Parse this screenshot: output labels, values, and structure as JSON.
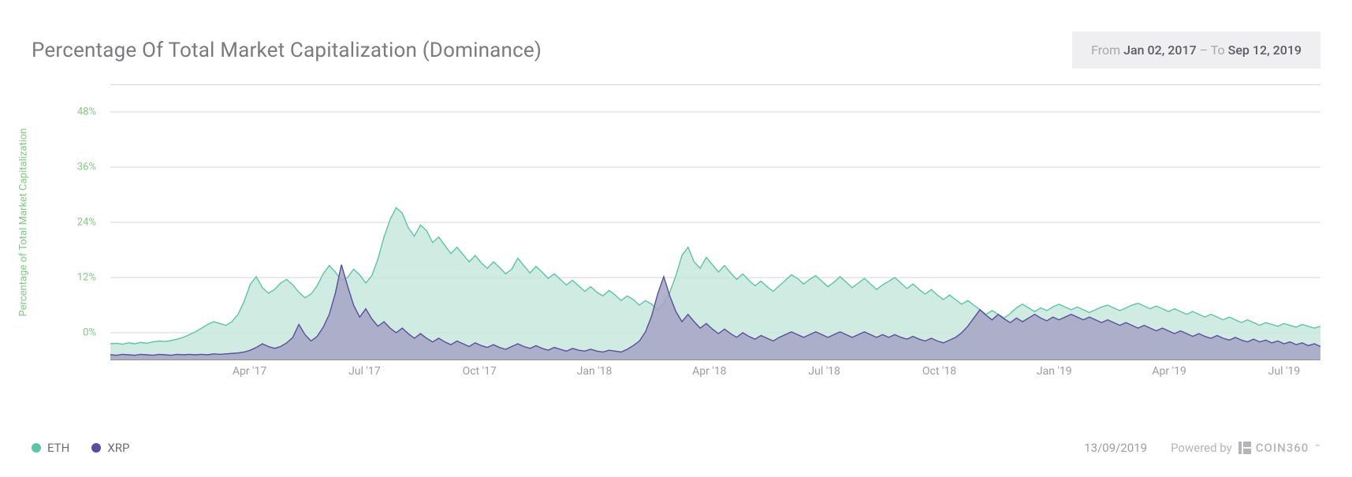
{
  "chart": {
    "type": "area",
    "title": "Percentage Of Total Market Capitalization (Dominance)",
    "title_color": "#7a7a82",
    "title_fontsize": 26,
    "background_color": "#ffffff",
    "grid_color": "#d7d7dc",
    "axis_line_color": "#8f8f96",
    "y_axis": {
      "label": "Percentage of Total Market Capitalization",
      "label_color": "#7fc97f",
      "label_fontsize": 13,
      "tick_color": "#7fc97f",
      "tick_fontsize": 13,
      "ticks": [
        0,
        12,
        24,
        36,
        48
      ],
      "suffix": "%",
      "ylim": [
        -6,
        54
      ]
    },
    "x_axis": {
      "tick_color": "#9b9ba2",
      "tick_fontsize": 14,
      "labels": [
        "Apr '17",
        "Jul '17",
        "Oct '17",
        "Jan '18",
        "Apr '18",
        "Jul '18",
        "Oct '18",
        "Jan '19",
        "Apr '19",
        "Jul '19"
      ],
      "label_positions_pct": [
        11.5,
        21,
        30.5,
        40,
        49.5,
        59,
        68.5,
        78,
        87.5,
        97
      ]
    },
    "date_range": {
      "from_label": "From",
      "from_value": "Jan 02, 2017",
      "sep": "–",
      "to_label": "To",
      "to_value": "Sep 12, 2019",
      "bg_color": "#efeff1",
      "label_color": "#a7a7ad",
      "value_color": "#5b5b63"
    },
    "series": [
      {
        "name": "ETH",
        "stroke": "#5cc4a6",
        "fill": "#c8e8dd",
        "fill_opacity": 0.85,
        "stroke_width": 1.4,
        "data": [
          -2.4,
          -2.3,
          -2.5,
          -2.2,
          -2.4,
          -2.1,
          -2.3,
          -2.0,
          -1.8,
          -1.9,
          -1.7,
          -1.4,
          -1.0,
          -0.4,
          0.2,
          1.0,
          1.8,
          2.4,
          2.0,
          1.6,
          2.4,
          4.0,
          6.8,
          10.5,
          12.2,
          9.8,
          8.6,
          9.4,
          10.8,
          11.6,
          10.4,
          8.8,
          7.6,
          8.4,
          10.2,
          12.8,
          14.6,
          13.2,
          11.4,
          12.0,
          13.8,
          12.6,
          10.8,
          12.4,
          16.0,
          20.8,
          24.6,
          27.2,
          26.0,
          22.8,
          21.0,
          23.4,
          22.2,
          19.6,
          20.8,
          19.0,
          17.2,
          18.6,
          17.0,
          15.4,
          16.8,
          15.2,
          14.0,
          15.4,
          14.2,
          12.8,
          13.8,
          16.2,
          14.6,
          13.0,
          14.4,
          13.2,
          11.8,
          12.8,
          11.6,
          10.4,
          11.4,
          10.2,
          9.0,
          10.0,
          8.8,
          8.0,
          9.2,
          8.2,
          7.0,
          8.0,
          7.2,
          6.0,
          7.0,
          6.2,
          5.0,
          6.4,
          8.8,
          12.4,
          16.8,
          18.6,
          15.4,
          14.0,
          16.4,
          14.8,
          13.2,
          14.6,
          13.0,
          11.6,
          12.8,
          11.4,
          10.2,
          11.2,
          10.0,
          9.0,
          10.2,
          11.4,
          12.6,
          11.8,
          10.6,
          11.6,
          12.4,
          11.2,
          10.0,
          11.0,
          12.2,
          11.0,
          9.8,
          10.8,
          11.8,
          10.6,
          9.4,
          10.4,
          11.2,
          12.0,
          10.8,
          9.6,
          10.6,
          9.4,
          8.4,
          9.4,
          8.2,
          7.2,
          8.2,
          7.2,
          6.2,
          7.0,
          6.0,
          5.0,
          4.0,
          4.8,
          4.0,
          3.2,
          4.2,
          5.4,
          6.2,
          5.4,
          4.6,
          5.4,
          4.8,
          5.6,
          6.2,
          5.6,
          5.0,
          5.6,
          5.0,
          4.4,
          5.0,
          5.6,
          6.0,
          5.4,
          4.8,
          5.4,
          6.0,
          6.4,
          5.8,
          5.2,
          5.8,
          5.2,
          4.6,
          5.2,
          4.6,
          4.0,
          4.6,
          4.0,
          3.4,
          4.0,
          3.4,
          2.8,
          3.4,
          2.8,
          2.2,
          2.8,
          2.2,
          1.6,
          2.2,
          1.8,
          1.4,
          2.0,
          1.6,
          1.2,
          1.8,
          1.4,
          1.0,
          1.4
        ]
      },
      {
        "name": "XRP",
        "stroke": "#5a4d9a",
        "fill": "#a6a4c4",
        "fill_opacity": 0.85,
        "stroke_width": 1.4,
        "data": [
          -4.8,
          -4.9,
          -4.7,
          -4.8,
          -4.9,
          -4.7,
          -4.8,
          -4.9,
          -4.7,
          -4.8,
          -4.9,
          -4.7,
          -4.8,
          -4.7,
          -4.8,
          -4.7,
          -4.8,
          -4.6,
          -4.7,
          -4.6,
          -4.5,
          -4.4,
          -4.2,
          -3.8,
          -3.2,
          -2.4,
          -3.0,
          -3.4,
          -3.0,
          -2.2,
          -1.0,
          1.8,
          -0.4,
          -1.8,
          -0.8,
          1.2,
          4.0,
          8.6,
          14.8,
          10.2,
          6.0,
          3.4,
          5.2,
          3.0,
          1.4,
          2.4,
          1.0,
          0.0,
          1.0,
          -0.2,
          -1.2,
          -0.2,
          -1.2,
          -2.0,
          -1.2,
          -2.0,
          -2.6,
          -1.8,
          -2.4,
          -3.0,
          -2.2,
          -2.8,
          -3.2,
          -2.6,
          -3.2,
          -3.6,
          -3.0,
          -2.4,
          -3.0,
          -3.4,
          -2.8,
          -3.4,
          -3.8,
          -3.2,
          -3.6,
          -4.0,
          -3.4,
          -3.8,
          -4.0,
          -3.6,
          -4.0,
          -4.2,
          -3.8,
          -4.0,
          -4.2,
          -3.6,
          -2.8,
          -1.8,
          0.2,
          3.6,
          8.4,
          12.2,
          8.0,
          4.6,
          2.4,
          4.0,
          2.4,
          1.0,
          2.0,
          0.8,
          -0.2,
          0.8,
          -0.2,
          -1.0,
          0.0,
          -0.8,
          -1.4,
          -0.6,
          -1.2,
          -1.8,
          -1.0,
          -0.4,
          0.2,
          -0.4,
          -1.0,
          -0.4,
          0.2,
          -0.4,
          -1.0,
          -0.4,
          0.2,
          -0.4,
          -1.0,
          -0.4,
          0.2,
          -0.4,
          -1.0,
          -0.4,
          -1.0,
          -0.4,
          -1.0,
          -1.4,
          -0.8,
          -1.4,
          -1.8,
          -1.2,
          -1.8,
          -2.2,
          -1.6,
          -1.0,
          0.0,
          1.4,
          3.2,
          5.0,
          3.8,
          2.8,
          4.0,
          3.0,
          2.2,
          3.2,
          2.4,
          3.2,
          4.0,
          3.2,
          2.6,
          3.4,
          2.8,
          3.4,
          4.0,
          3.4,
          2.8,
          3.4,
          2.8,
          2.2,
          2.8,
          2.2,
          1.6,
          2.2,
          1.6,
          1.0,
          1.6,
          1.0,
          0.4,
          1.0,
          0.4,
          -0.2,
          0.4,
          -0.2,
          -0.8,
          -0.2,
          -0.8,
          -1.2,
          -0.6,
          -1.2,
          -1.6,
          -1.0,
          -1.6,
          -2.0,
          -1.4,
          -2.0,
          -1.6,
          -2.2,
          -1.8,
          -2.4,
          -2.0,
          -2.6,
          -2.2,
          -2.8,
          -2.4,
          -3.0
        ]
      }
    ]
  },
  "legend": {
    "items": [
      {
        "label": "ETH",
        "color": "#5cc4a6"
      },
      {
        "label": "XRP",
        "color": "#5a4d9a"
      }
    ],
    "label_color": "#6b6b72"
  },
  "footer": {
    "date": "13/09/2019",
    "powered_label": "Powered by",
    "brand": "COIN360",
    "brand_tm": "™",
    "text_color": "#b4b4ba"
  }
}
